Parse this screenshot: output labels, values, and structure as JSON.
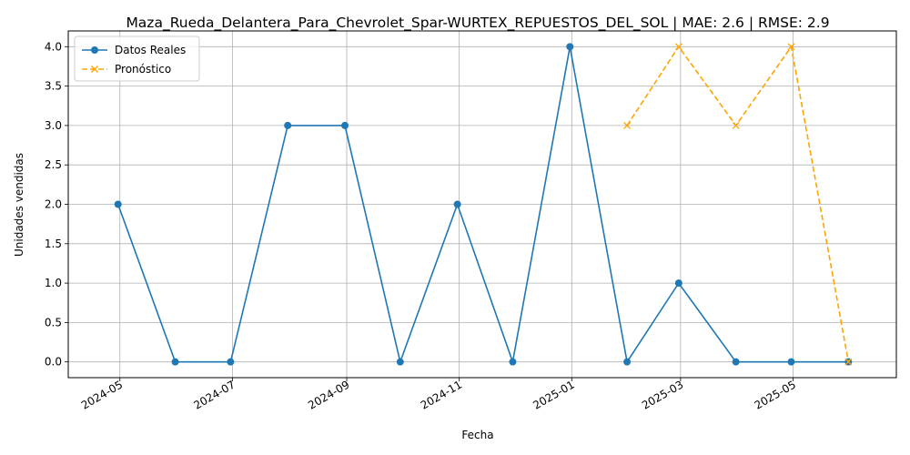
{
  "chart_data": {
    "type": "line",
    "title": "Maza_Rueda_Delantera_Para_Chevrolet_Spar-WURTEX_REPUESTOS_DEL_SOL | MAE: 2.6 | RMSE: 2.9",
    "xlabel": "Fecha",
    "ylabel": "Unidades vendidas",
    "x_tick_labels": [
      "2024-05",
      "2024-07",
      "2024-09",
      "2024-11",
      "2025-01",
      "2025-03",
      "2025-05"
    ],
    "y_tick_labels": [
      "0.0",
      "0.5",
      "1.0",
      "1.5",
      "2.0",
      "2.5",
      "3.0",
      "3.5",
      "4.0"
    ],
    "ylim": [
      -0.2,
      4.2
    ],
    "xlim": [
      "2024-04-03",
      "2025-06-26"
    ],
    "grid": true,
    "legend_position": "top-left",
    "series": [
      {
        "name": "Datos Reales",
        "color": "#1f77b4",
        "marker": "circle",
        "line_style": "solid",
        "x": [
          "2024-04-30",
          "2024-05-31",
          "2024-06-30",
          "2024-07-31",
          "2024-08-31",
          "2024-09-30",
          "2024-10-31",
          "2024-11-30",
          "2024-12-31",
          "2025-01-31",
          "2025-02-28",
          "2025-03-31",
          "2025-04-30",
          "2025-05-31"
        ],
        "values": [
          2,
          0,
          0,
          3,
          3,
          0,
          2,
          0,
          4,
          0,
          1,
          0,
          0,
          0
        ]
      },
      {
        "name": "Pronóstico",
        "color": "#ffa500",
        "marker": "x",
        "line_style": "dashed",
        "x": [
          "2025-01-31",
          "2025-02-28",
          "2025-03-31",
          "2025-04-30",
          "2025-05-31"
        ],
        "values": [
          3,
          4,
          3,
          4,
          0
        ]
      }
    ]
  }
}
